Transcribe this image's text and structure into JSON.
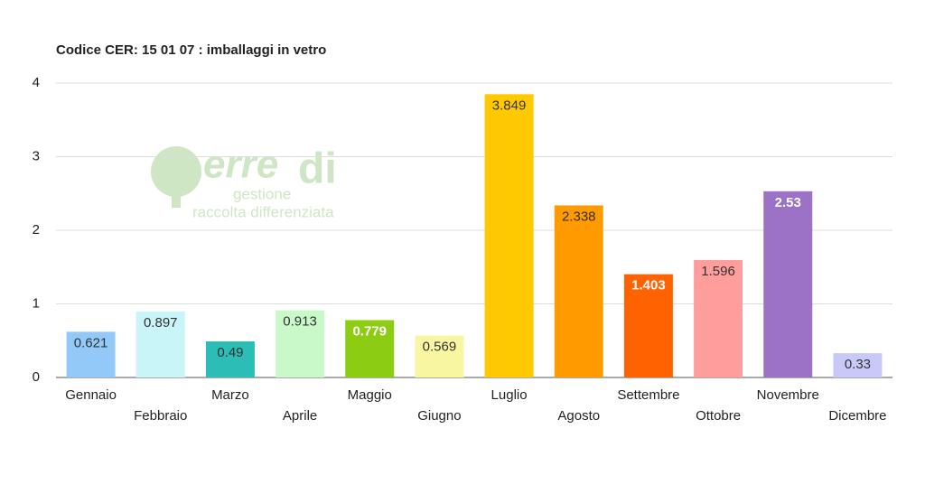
{
  "chart_data": {
    "type": "bar",
    "title": "Codice CER: 15 01 07 : imballaggi in vetro",
    "categories": [
      "Gennaio",
      "Febbraio",
      "Marzo",
      "Aprile",
      "Maggio",
      "Giugno",
      "Luglio",
      "Agosto",
      "Settembre",
      "Ottobre",
      "Novembre",
      "Dicembre"
    ],
    "values": [
      0.621,
      0.897,
      0.49,
      0.913,
      0.779,
      0.569,
      3.849,
      2.338,
      1.403,
      1.596,
      2.53,
      0.33
    ],
    "colors": [
      "#92c9f9",
      "#c9f5f9",
      "#2cbdb7",
      "#c9f9c9",
      "#8ccc12",
      "#f9f6a2",
      "#ffc900",
      "#ff9a00",
      "#ff6200",
      "#ff9d9d",
      "#9b72c6",
      "#c9c9f9"
    ],
    "value_label_colors": [
      "#333333",
      "#333333",
      "#333333",
      "#333333",
      "#ffffff",
      "#333333",
      "#333333",
      "#333333",
      "#ffffff",
      "#333333",
      "#ffffff",
      "#333333"
    ],
    "ylim": [
      0,
      4
    ],
    "yticks": [
      0,
      1,
      2,
      3,
      4
    ],
    "grid": true,
    "watermark": {
      "brand": "erre",
      "brand_end": "di",
      "line1": "gestione",
      "line2": "raccolta differenziata"
    }
  }
}
